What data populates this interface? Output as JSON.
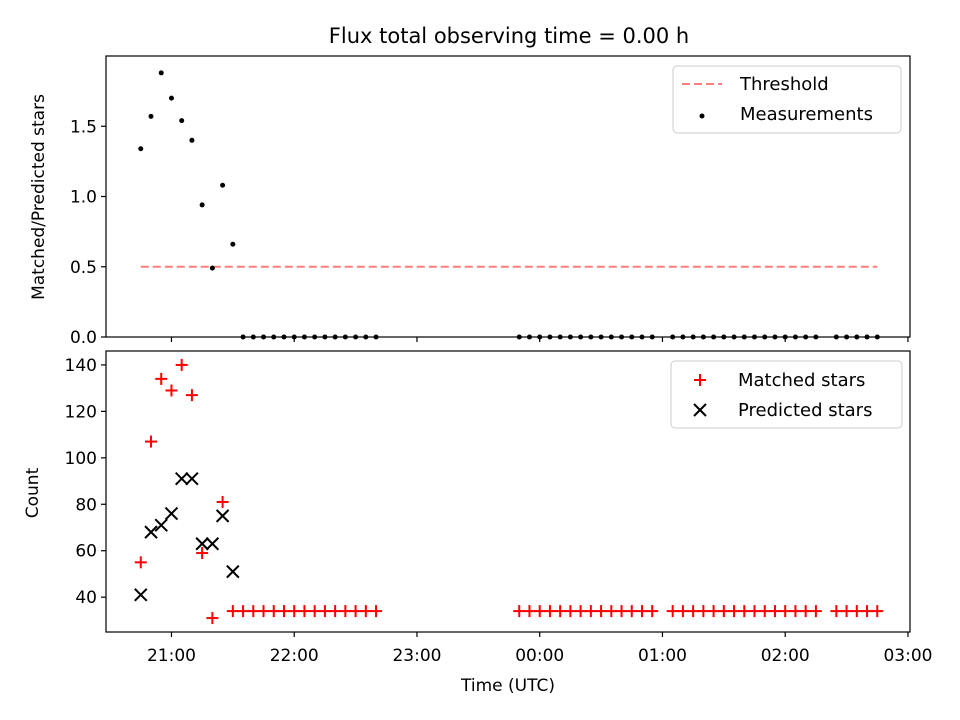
{
  "figure": {
    "title": "Flux total observing time = 0.00 h"
  },
  "chart_data": [
    {
      "type": "scatter",
      "ylabel": "Matched/Predicted stars",
      "xlim": [
        "20:28",
        "27:01"
      ],
      "ylim": [
        0,
        2.0
      ],
      "yticks": [
        0.0,
        0.5,
        1.0,
        1.5
      ],
      "ytick_labels": [
        "0.0",
        "0.5",
        "1.0",
        "1.5"
      ],
      "legend": {
        "placement": "top-right",
        "threshold_label": "Threshold",
        "measurements_label": "Measurements"
      },
      "threshold": {
        "value": 0.5,
        "x_start": "20:45",
        "x_end": "26:45",
        "color": "#ff7f7f"
      },
      "series": [
        {
          "name": "Measurements",
          "color": "#000000",
          "x": [
            "20:45",
            "20:50",
            "20:55",
            "21:00",
            "21:05",
            "21:10",
            "21:15",
            "21:20",
            "21:25",
            "21:30",
            "21:35",
            "21:40",
            "21:45",
            "21:50",
            "21:55",
            "22:00",
            "22:05",
            "22:10",
            "22:15",
            "22:20",
            "22:25",
            "22:30",
            "22:35",
            "22:40",
            "23:50",
            "23:55",
            "24:00",
            "24:05",
            "24:10",
            "24:15",
            "24:20",
            "24:25",
            "24:30",
            "24:35",
            "24:40",
            "24:45",
            "24:50",
            "24:55",
            "25:05",
            "25:10",
            "25:15",
            "25:20",
            "25:25",
            "25:30",
            "25:35",
            "25:40",
            "25:45",
            "25:50",
            "25:55",
            "26:00",
            "26:05",
            "26:10",
            "26:15",
            "26:25",
            "26:30",
            "26:35",
            "26:40",
            "26:45"
          ],
          "y": [
            1.34,
            1.57,
            1.88,
            1.7,
            1.54,
            1.4,
            0.94,
            0.49,
            1.08,
            0.66,
            0,
            0,
            0,
            0,
            0,
            0,
            0,
            0,
            0,
            0,
            0,
            0,
            0,
            0,
            0,
            0,
            0,
            0,
            0,
            0,
            0,
            0,
            0,
            0,
            0,
            0,
            0,
            0,
            0,
            0,
            0,
            0,
            0,
            0,
            0,
            0,
            0,
            0,
            0,
            0,
            0,
            0,
            0,
            0,
            0,
            0,
            0,
            0
          ]
        }
      ]
    },
    {
      "type": "scatter",
      "xlabel": "Time (UTC)",
      "ylabel": "Count",
      "xlim": [
        "20:28",
        "27:01"
      ],
      "ylim": [
        25,
        146
      ],
      "yticks": [
        40,
        60,
        80,
        100,
        120,
        140
      ],
      "xticks": [
        "21:00",
        "22:00",
        "23:00",
        "24:00",
        "25:00",
        "26:00",
        "27:00"
      ],
      "xtick_labels": [
        "21:00",
        "22:00",
        "23:00",
        "00:00",
        "01:00",
        "02:00",
        "03:00"
      ],
      "legend": {
        "placement": "top-right"
      },
      "series": [
        {
          "name": "Matched stars",
          "marker": "plus",
          "color": "#ff0000",
          "x": [
            "20:45",
            "20:50",
            "20:55",
            "21:00",
            "21:05",
            "21:10",
            "21:15",
            "21:20",
            "21:25",
            "21:30",
            "21:35",
            "21:40",
            "21:45",
            "21:50",
            "21:55",
            "22:00",
            "22:05",
            "22:10",
            "22:15",
            "22:20",
            "22:25",
            "22:30",
            "22:35",
            "22:40",
            "23:50",
            "23:55",
            "24:00",
            "24:05",
            "24:10",
            "24:15",
            "24:20",
            "24:25",
            "24:30",
            "24:35",
            "24:40",
            "24:45",
            "24:50",
            "24:55",
            "25:05",
            "25:10",
            "25:15",
            "25:20",
            "25:25",
            "25:30",
            "25:35",
            "25:40",
            "25:45",
            "25:50",
            "25:55",
            "26:00",
            "26:05",
            "26:10",
            "26:15",
            "26:25",
            "26:30",
            "26:35",
            "26:40",
            "26:45"
          ],
          "y": [
            55,
            107,
            134,
            129,
            140,
            127,
            59,
            31,
            81,
            34,
            34,
            34,
            34,
            34,
            34,
            34,
            34,
            34,
            34,
            34,
            34,
            34,
            34,
            34,
            34,
            34,
            34,
            34,
            34,
            34,
            34,
            34,
            34,
            34,
            34,
            34,
            34,
            34,
            34,
            34,
            34,
            34,
            34,
            34,
            34,
            34,
            34,
            34,
            34,
            34,
            34,
            34,
            34,
            34,
            34,
            34,
            34,
            34
          ]
        },
        {
          "name": "Predicted stars",
          "marker": "x",
          "color": "#000000",
          "x": [
            "20:45",
            "20:50",
            "20:55",
            "21:00",
            "21:05",
            "21:10",
            "21:15",
            "21:20",
            "21:25",
            "21:30"
          ],
          "y": [
            41,
            68,
            71,
            76,
            91,
            91,
            63,
            63,
            75,
            51
          ]
        }
      ]
    }
  ]
}
